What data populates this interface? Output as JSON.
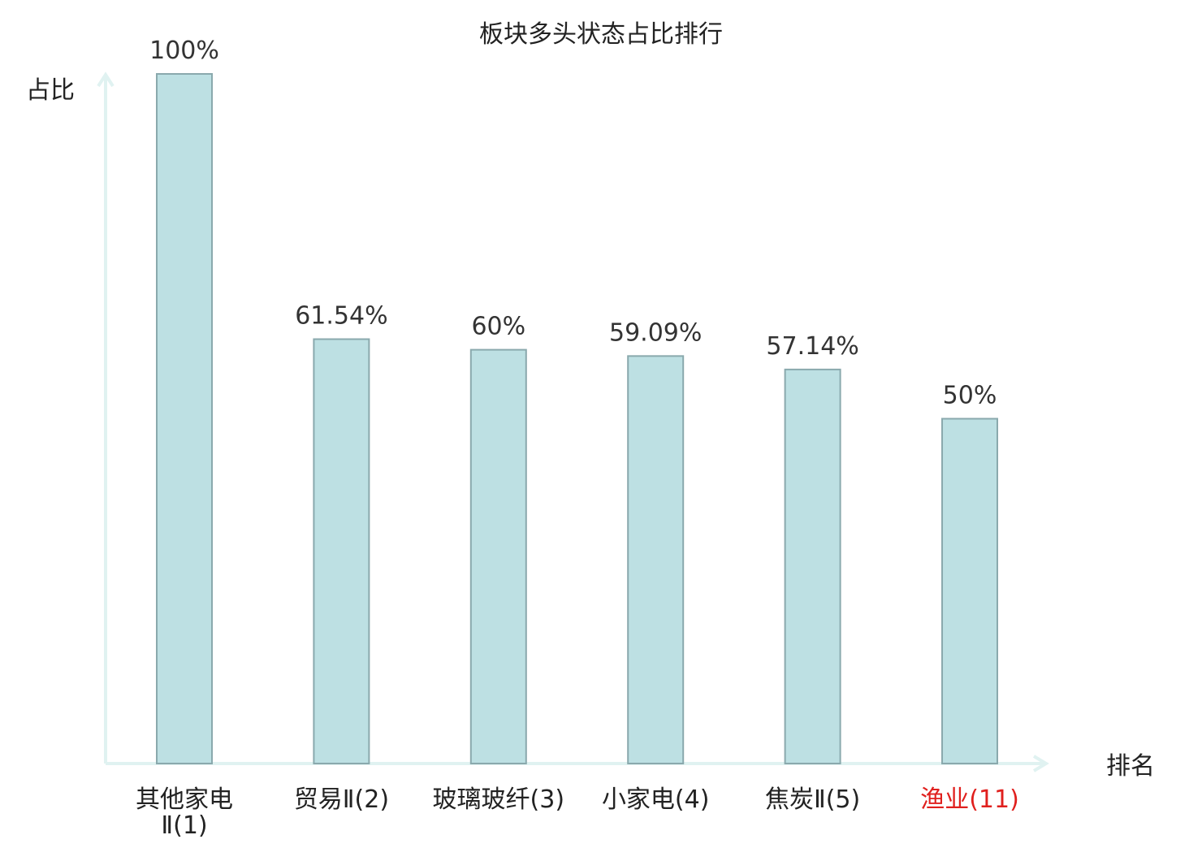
{
  "chart_data": {
    "type": "bar",
    "title": "板块多头状态占比排行",
    "xlabel": "排名",
    "ylabel": "占比",
    "categories": [
      {
        "name": "其他家电Ⅱ",
        "rank": "(1)",
        "lines": [
          "其他家电",
          "Ⅱ(1)"
        ],
        "highlight": false
      },
      {
        "name": "贸易Ⅱ",
        "rank": "(2)",
        "lines": [
          "贸易Ⅱ(2)"
        ],
        "highlight": false
      },
      {
        "name": "玻璃玻纤",
        "rank": "(3)",
        "lines": [
          "玻璃玻纤(3)"
        ],
        "highlight": false
      },
      {
        "name": "小家电",
        "rank": "(4)",
        "lines": [
          "小家电(4)"
        ],
        "highlight": false
      },
      {
        "name": "焦炭Ⅱ",
        "rank": "(5)",
        "lines": [
          "焦炭Ⅱ(5)"
        ],
        "highlight": false
      },
      {
        "name": "渔业",
        "rank": "(11)",
        "lines": [
          "渔业(11)"
        ],
        "highlight": true
      }
    ],
    "values": [
      100,
      61.54,
      60,
      59.09,
      57.14,
      50
    ],
    "value_labels": [
      "100%",
      "61.54%",
      "60%",
      "59.09%",
      "57.14%",
      "50%"
    ],
    "ylim": [
      0,
      100
    ],
    "grid": false,
    "legend": "none"
  },
  "colors": {
    "bar_fill": "#bde0e3",
    "bar_stroke": "#8aa9ad",
    "axis": "#e0f2f1",
    "text": "#333333",
    "title_text": "#222222",
    "highlight_text": "#e0201e"
  }
}
